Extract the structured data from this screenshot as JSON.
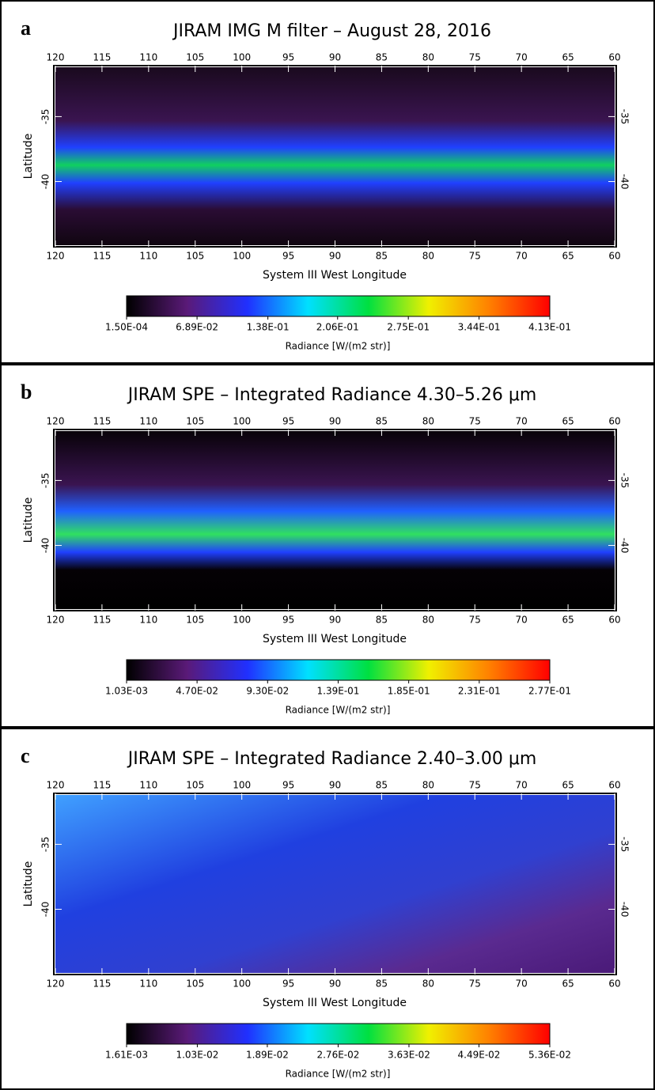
{
  "chart_data": [
    {
      "type": "heatmap",
      "panel_label": "a",
      "title": "JIRAM IMG M filter – August 28, 2016",
      "x_label": "System III West Longitude",
      "y_label": "Latitude",
      "xlim": [
        120,
        60
      ],
      "xticks": [
        120,
        115,
        110,
        105,
        100,
        95,
        90,
        85,
        80,
        75,
        70,
        65,
        60
      ],
      "ylim": [
        -44.9,
        -31.2
      ],
      "yticks": [
        -35,
        -40
      ],
      "colorbar_label": "Radiance [W/(m2 str)]",
      "clim": [
        0.00015,
        0.413
      ],
      "colorbar_ticks": [
        {
          "value": 0.00015,
          "label": "1.50E-04"
        },
        {
          "value": 0.0689,
          "label": "6.89E-02"
        },
        {
          "value": 0.138,
          "label": "1.38E-01"
        },
        {
          "value": 0.206,
          "label": "2.06E-01"
        },
        {
          "value": 0.275,
          "label": "2.75E-01"
        },
        {
          "value": 0.344,
          "label": "3.44E-01"
        },
        {
          "value": 0.413,
          "label": "4.13E-01"
        }
      ],
      "colormap": [
        "#000000",
        "#5a1a78",
        "#2030ff",
        "#00e0ff",
        "#00e040",
        "#f0f000",
        "#ff8000",
        "#ff0000"
      ]
    },
    {
      "type": "heatmap",
      "panel_label": "b",
      "title": "JIRAM SPE – Integrated Radiance 4.30–5.26 μm",
      "x_label": "System III West Longitude",
      "y_label": "Latitude",
      "xlim": [
        120,
        60
      ],
      "xticks": [
        120,
        115,
        110,
        105,
        100,
        95,
        90,
        85,
        80,
        75,
        70,
        65,
        60
      ],
      "ylim": [
        -44.9,
        -31.2
      ],
      "yticks": [
        -35,
        -40
      ],
      "colorbar_label": "Radiance [W/(m2 str)]",
      "clim": [
        0.00103,
        0.277
      ],
      "colorbar_ticks": [
        {
          "value": 0.00103,
          "label": "1.03E-03"
        },
        {
          "value": 0.047,
          "label": "4.70E-02"
        },
        {
          "value": 0.093,
          "label": "9.30E-02"
        },
        {
          "value": 0.139,
          "label": "1.39E-01"
        },
        {
          "value": 0.185,
          "label": "1.85E-01"
        },
        {
          "value": 0.231,
          "label": "2.31E-01"
        },
        {
          "value": 0.277,
          "label": "2.77E-01"
        }
      ],
      "colormap": [
        "#000000",
        "#5a1a78",
        "#2030ff",
        "#00e0ff",
        "#00e040",
        "#f0f000",
        "#ff8000",
        "#ff0000"
      ]
    },
    {
      "type": "heatmap",
      "panel_label": "c",
      "title": "JIRAM SPE – Integrated Radiance 2.40–3.00 μm",
      "x_label": "System III West Longitude",
      "y_label": "Latitude",
      "xlim": [
        120,
        60
      ],
      "xticks": [
        120,
        115,
        110,
        105,
        100,
        95,
        90,
        85,
        80,
        75,
        70,
        65,
        60
      ],
      "ylim": [
        -44.9,
        -31.2
      ],
      "yticks": [
        -35,
        -40
      ],
      "colorbar_label": "Radiance [W/(m2 str)]",
      "clim": [
        0.00161,
        0.0536
      ],
      "colorbar_ticks": [
        {
          "value": 0.00161,
          "label": "1.61E-03"
        },
        {
          "value": 0.0103,
          "label": "1.03E-02"
        },
        {
          "value": 0.0189,
          "label": "1.89E-02"
        },
        {
          "value": 0.0276,
          "label": "2.76E-02"
        },
        {
          "value": 0.0363,
          "label": "3.63E-02"
        },
        {
          "value": 0.0449,
          "label": "4.49E-02"
        },
        {
          "value": 0.0536,
          "label": "5.36E-02"
        }
      ],
      "colormap": [
        "#000000",
        "#5a1a78",
        "#2030ff",
        "#00e0ff",
        "#00e040",
        "#f0f000",
        "#ff8000",
        "#ff0000"
      ]
    }
  ]
}
